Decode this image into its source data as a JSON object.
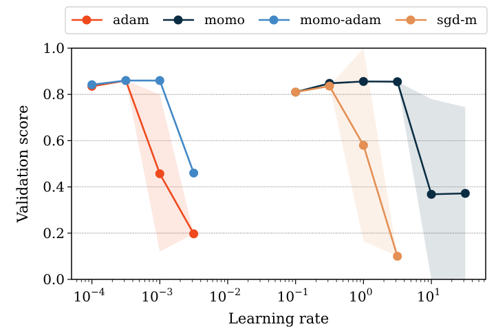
{
  "chart_data": {
    "type": "line",
    "xscale": "log",
    "xlabel": "Learning rate",
    "ylabel": "Validation score",
    "xlim_exp": [
      -4.3,
      1.8
    ],
    "ylim": [
      0,
      1
    ],
    "y_ticks": [
      "0.0",
      "0.2",
      "0.4",
      "0.6",
      "0.8",
      "1.0"
    ],
    "x_ticks": [
      {
        "base": "10",
        "exp": "−4",
        "exp_val": -4
      },
      {
        "base": "10",
        "exp": "−3",
        "exp_val": -3
      },
      {
        "base": "10",
        "exp": "−2",
        "exp_val": -2
      },
      {
        "base": "10",
        "exp": "−1",
        "exp_val": -1
      },
      {
        "base": "10",
        "exp": "0",
        "exp_val": 0
      },
      {
        "base": "10",
        "exp": "1",
        "exp_val": 1
      }
    ],
    "grid": "horizontal dotted",
    "legend_position": "top",
    "series": [
      {
        "name": "adam",
        "color": "#ee4a1d",
        "x": [
          0.0001,
          0.000316,
          0.001,
          0.00316
        ],
        "y": [
          0.835,
          0.86,
          0.457,
          0.197
        ],
        "band_low": [
          0.835,
          0.86,
          0.12,
          0.197
        ],
        "band_high": [
          0.835,
          0.86,
          0.8,
          0.197
        ]
      },
      {
        "name": "momo",
        "color": "#0b2d43",
        "x": [
          0.1,
          0.316,
          1.0,
          3.16,
          10.0,
          31.6
        ],
        "y": [
          0.81,
          0.848,
          0.856,
          0.855,
          0.368,
          0.372
        ],
        "band_low": [
          0.81,
          0.848,
          0.856,
          0.855,
          0.0,
          0.0
        ],
        "band_high": [
          0.81,
          0.848,
          0.856,
          0.855,
          0.78,
          0.745
        ]
      },
      {
        "name": "momo-adam",
        "color": "#4388c6",
        "x": [
          0.0001,
          0.000316,
          0.001,
          0.00316
        ],
        "y": [
          0.842,
          0.86,
          0.86,
          0.46
        ],
        "band_low": [
          0.842,
          0.86,
          0.86,
          0.46
        ],
        "band_high": [
          0.842,
          0.86,
          0.86,
          0.46
        ]
      },
      {
        "name": "sgd-m",
        "color": "#e48f53",
        "x": [
          0.1,
          0.316,
          1.0,
          3.16
        ],
        "y": [
          0.81,
          0.836,
          0.58,
          0.1
        ],
        "band_low": [
          0.81,
          0.836,
          0.165,
          0.1
        ],
        "band_high": [
          0.81,
          0.836,
          1.0,
          0.1
        ]
      }
    ]
  }
}
